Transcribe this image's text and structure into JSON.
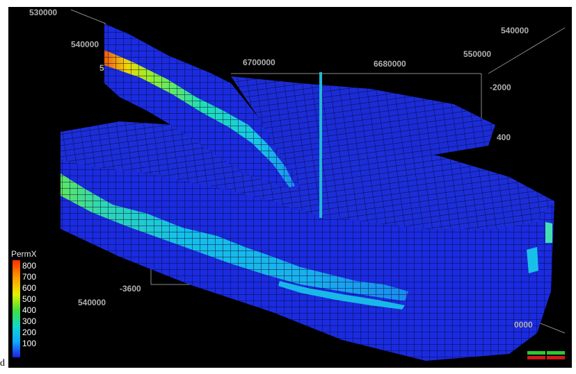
{
  "viewer": {
    "corner_glyph": "d",
    "axis_labels": [
      {
        "id": "tl-530000",
        "text": "530000"
      },
      {
        "id": "tl-540000",
        "text": "540000"
      },
      {
        "id": "tl-5",
        "text": "5"
      },
      {
        "id": "top-6700000",
        "text": "6700000"
      },
      {
        "id": "top-6680000",
        "text": "6680000"
      },
      {
        "id": "tr-540000",
        "text": "540000"
      },
      {
        "id": "tr-550000",
        "text": "550000"
      },
      {
        "id": "right-minus2000",
        "text": "-2000"
      },
      {
        "id": "right-400",
        "text": "400"
      },
      {
        "id": "bottom-minus3600",
        "text": "-3600"
      },
      {
        "id": "bottom-540000",
        "text": "540000"
      },
      {
        "id": "br-0000",
        "text": "0000"
      }
    ],
    "legend": {
      "title": "PermX",
      "ticks": [
        "800",
        "700",
        "600",
        "500",
        "400",
        "300",
        "200",
        "100"
      ]
    },
    "colors": {
      "background": "#000000",
      "grid_lines": "#0a0a3a",
      "cell_low": "#1a2bdf",
      "cell_mid": "#19d2e6",
      "cell_high": "#f0e000",
      "cell_max": "#e63010",
      "well": "#22b8d6",
      "toggle_top": "#2ec82e",
      "toggle_bottom": "#d01818"
    },
    "well_icon": "vertical-well-icon"
  }
}
